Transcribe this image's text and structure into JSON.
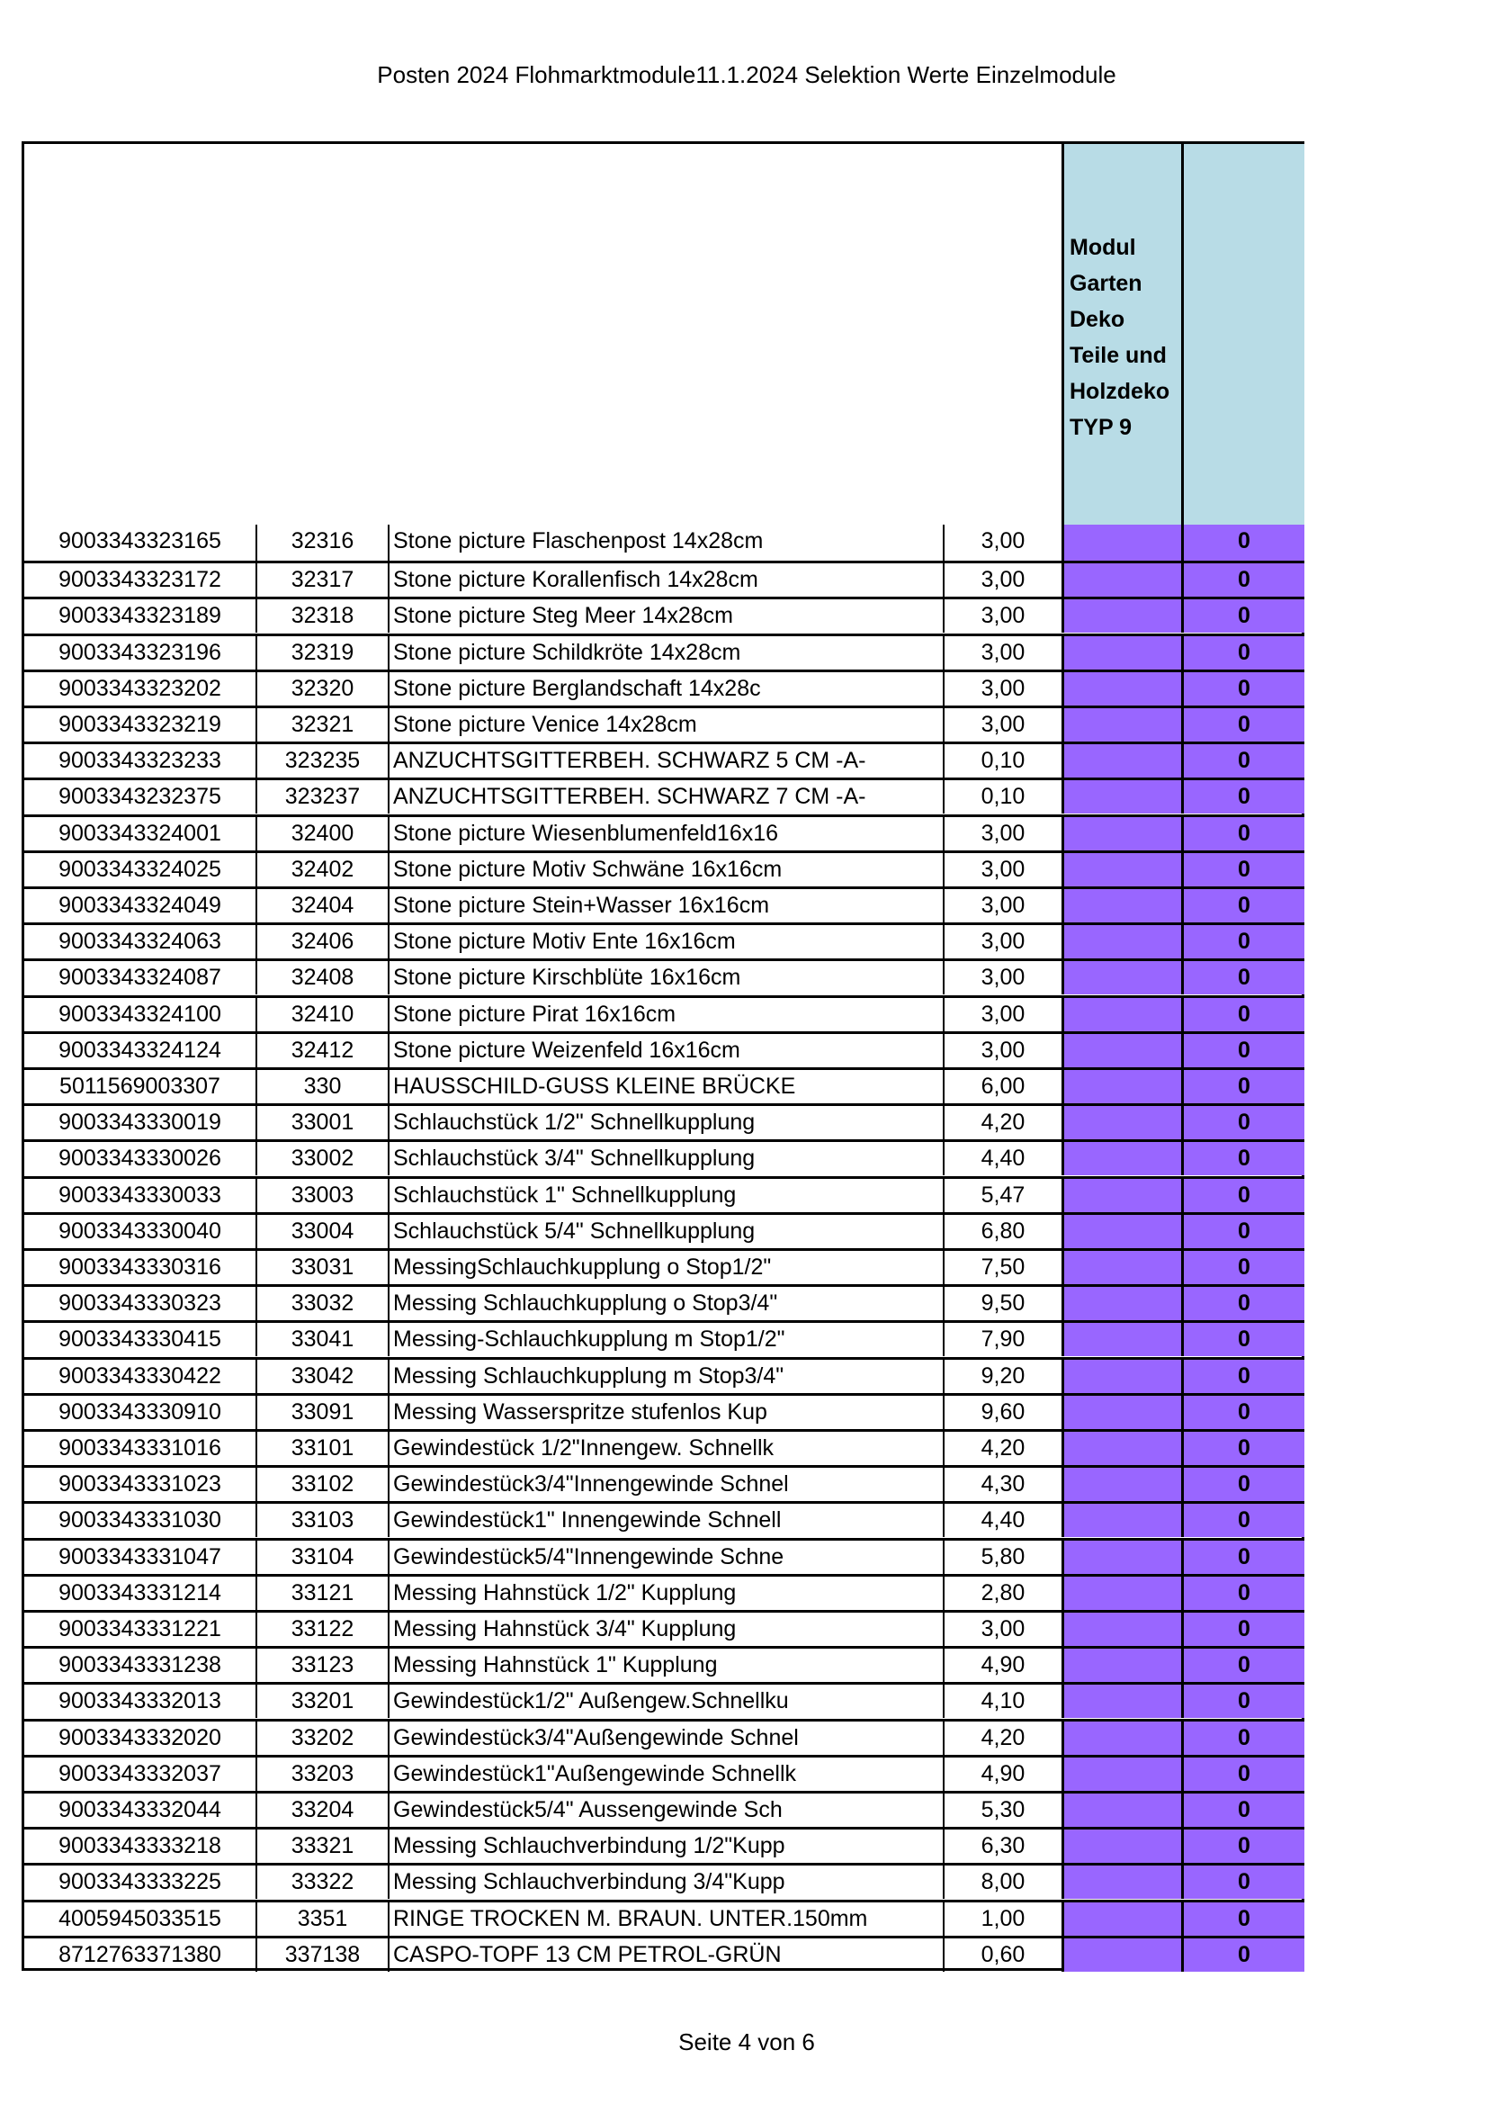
{
  "title": "Posten 2024 Flohmarktmodule11.1.2024 Selektion Werte Einzelmodule",
  "footer": "Seite 4 von 6",
  "colors": {
    "header_bg": "#b8dce6",
    "qty_bg": "#9966ff"
  },
  "header": {
    "module_label": "Modul\nGarten\nDeko\nTeile  und\nHolzdeko\nTYP 9"
  },
  "rows": [
    [
      "9003343323165",
      "32316",
      "Stone picture Flaschenpost 14x28cm",
      "3,00",
      "0"
    ],
    [
      "9003343323172",
      "32317",
      "Stone picture Korallenfisch 14x28cm",
      "3,00",
      "0"
    ],
    [
      "9003343323189",
      "32318",
      " Stone picture Steg Meer 14x28cm",
      "3,00",
      "0"
    ],
    [
      "9003343323196",
      "32319",
      " Stone picture Schildkröte 14x28cm",
      "3,00",
      "0"
    ],
    [
      "9003343323202",
      "32320",
      "Stone picture Berglandschaft 14x28c",
      "3,00",
      "0"
    ],
    [
      "9003343323219",
      "32321",
      "Stone picture Venice 14x28cm",
      "3,00",
      "0"
    ],
    [
      "9003343323233",
      "323235",
      "ANZUCHTSGITTERBEH. SCHWARZ 5 CM -A-",
      "0,10",
      "0"
    ],
    [
      "9003343232375",
      "323237",
      "ANZUCHTSGITTERBEH. SCHWARZ 7 CM -A-",
      "0,10",
      "0"
    ],
    [
      "9003343324001",
      "32400",
      "Stone picture Wiesenblumenfeld16x16",
      "3,00",
      "0"
    ],
    [
      "9003343324025",
      "32402",
      "Stone picture Motiv Schwäne 16x16cm",
      "3,00",
      "0"
    ],
    [
      "9003343324049",
      "32404",
      "Stone picture Stein+Wasser 16x16cm",
      "3,00",
      "0"
    ],
    [
      "9003343324063",
      "32406",
      "Stone picture Motiv Ente 16x16cm",
      "3,00",
      "0"
    ],
    [
      "9003343324087",
      "32408",
      "Stone picture Kirschblüte 16x16cm",
      "3,00",
      "0"
    ],
    [
      "9003343324100",
      "32410",
      " Stone picture Pirat 16x16cm",
      "3,00",
      "0"
    ],
    [
      "9003343324124",
      "32412",
      "Stone picture  Weizenfeld 16x16cm",
      "3,00",
      "0"
    ],
    [
      "5011569003307",
      "330",
      "HAUSSCHILD-GUSS KLEINE BRÜCKE",
      "6,00",
      "0"
    ],
    [
      "9003343330019",
      "33001",
      "Schlauchstück 1/2\" Schnellkupplung",
      "4,20",
      "0"
    ],
    [
      "9003343330026",
      "33002",
      "Schlauchstück 3/4\" Schnellkupplung",
      "4,40",
      "0"
    ],
    [
      "9003343330033",
      "33003",
      "Schlauchstück 1\" Schnellkupplung",
      "5,47",
      "0"
    ],
    [
      "9003343330040",
      "33004",
      "Schlauchstück 5/4\" Schnellkupplung",
      "6,80",
      "0"
    ],
    [
      "9003343330316",
      "33031",
      "MessingSchlauchkupplung o Stop1/2\"",
      "7,50",
      "0"
    ],
    [
      "9003343330323",
      "33032",
      "Messing Schlauchkupplung o Stop3/4\"",
      "9,50",
      "0"
    ],
    [
      "9003343330415",
      "33041",
      "Messing-Schlauchkupplung m Stop1/2\"",
      "7,90",
      "0"
    ],
    [
      "9003343330422",
      "33042",
      "Messing Schlauchkupplung m Stop3/4\"",
      "9,20",
      "0"
    ],
    [
      "9003343330910",
      "33091",
      "Messing Wasserspritze stufenlos Kup",
      "9,60",
      "0"
    ],
    [
      "9003343331016",
      "33101",
      "Gewindestück 1/2\"Innengew. Schnellk",
      "4,20",
      "0"
    ],
    [
      "9003343331023",
      "33102",
      "Gewindestück3/4\"Innengewinde Schnel",
      "4,30",
      "0"
    ],
    [
      "9003343331030",
      "33103",
      "Gewindestück1\" Innengewinde Schnell",
      "4,40",
      "0"
    ],
    [
      "9003343331047",
      "33104",
      "Gewindestück5/4\"Innengewinde Schne",
      "5,80",
      "0"
    ],
    [
      "9003343331214",
      "33121",
      "Messing Hahnstück 1/2\" Kupplung",
      "2,80",
      "0"
    ],
    [
      "9003343331221",
      "33122",
      "Messing Hahnstück 3/4\" Kupplung",
      "3,00",
      "0"
    ],
    [
      "9003343331238",
      "33123",
      "Messing Hahnstück 1\" Kupplung",
      "4,90",
      "0"
    ],
    [
      "9003343332013",
      "33201",
      "Gewindestück1/2\" Außengew.Schnellku",
      "4,10",
      "0"
    ],
    [
      "9003343332020",
      "33202",
      "Gewindestück3/4\"Außengewinde Schnel",
      "4,20",
      "0"
    ],
    [
      "9003343332037",
      "33203",
      "Gewindestück1\"Außengewinde Schnellk",
      "4,90",
      "0"
    ],
    [
      "9003343332044",
      "33204",
      "Gewindestück5/4\" Aussengewinde Sch",
      "5,30",
      "0"
    ],
    [
      "9003343333218",
      "33321",
      "Messing Schlauchverbindung 1/2\"Kupp",
      "6,30",
      "0"
    ],
    [
      "9003343333225",
      "33322",
      "Messing Schlauchverbindung 3/4\"Kupp",
      "8,00",
      "0"
    ],
    [
      "4005945033515",
      "3351",
      "RINGE TROCKEN M. BRAUN. UNTER.150mm",
      "1,00",
      "0"
    ],
    [
      "8712763371380",
      "337138",
      "CASPO-TOPF 13 CM PETROL-GRÜN",
      "0,60",
      "0"
    ]
  ]
}
